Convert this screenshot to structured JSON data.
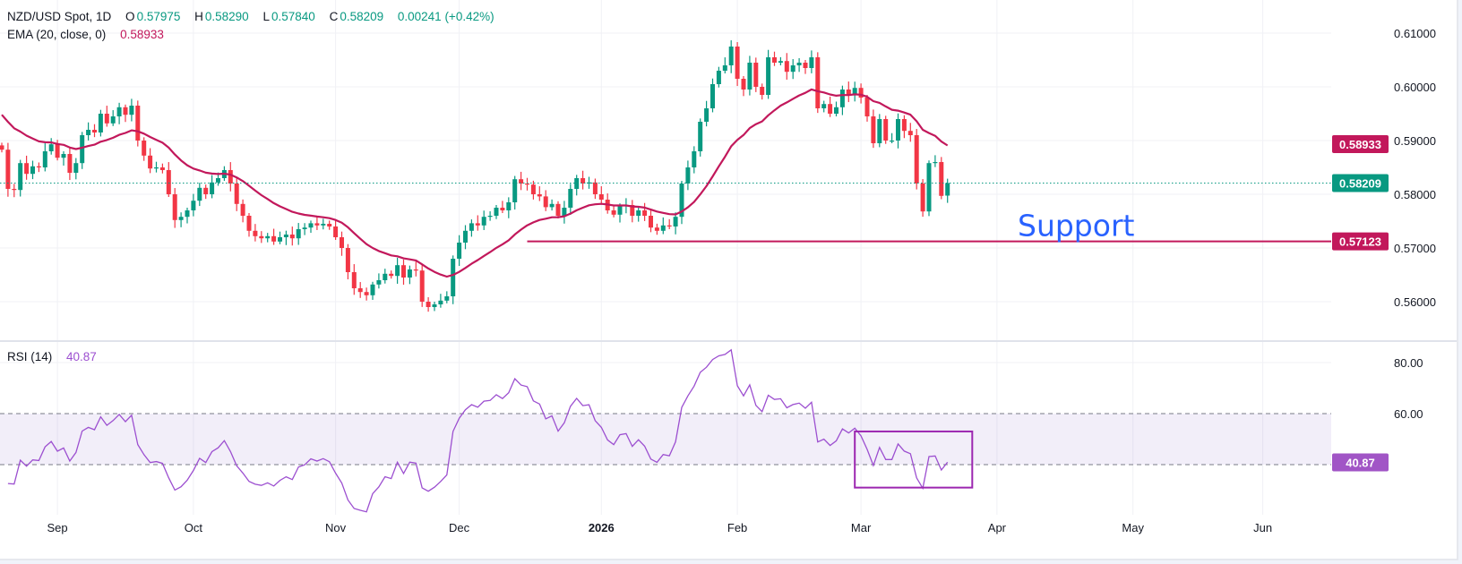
{
  "header": {
    "symbol": "NZD/USD Spot, 1D",
    "o_label": "O",
    "o": "0.57975",
    "h_label": "H",
    "h": "0.58290",
    "l_label": "L",
    "l": "0.57840",
    "c_label": "C",
    "c": "0.58209",
    "change": "0.00241 (+0.42%)"
  },
  "ema_legend": {
    "label": "EMA (20, close, 0)",
    "value": "0.58933"
  },
  "rsi_legend": {
    "label": "RSI (14)",
    "value": "40.87"
  },
  "colors": {
    "up": "#089981",
    "down": "#f23645",
    "ema": "#c2185b",
    "rsi": "#9c4fd0",
    "rsi_label": "#a155c6",
    "support": "#c2185b",
    "support_text": "#2962ff",
    "grid": "#f0f1f5"
  },
  "chart_data": {
    "type": "candlestick",
    "title": "NZD/USD Spot, 1D",
    "start_date": "2025-08-19",
    "close": [
      0.5883,
      0.581,
      0.5808,
      0.5858,
      0.5838,
      0.5852,
      0.585,
      0.588,
      0.5893,
      0.5868,
      0.5875,
      0.584,
      0.5858,
      0.591,
      0.592,
      0.5915,
      0.595,
      0.5932,
      0.5945,
      0.5962,
      0.5948,
      0.5965,
      0.59,
      0.5872,
      0.5848,
      0.585,
      0.5845,
      0.58,
      0.5752,
      0.5758,
      0.577,
      0.5788,
      0.5812,
      0.58,
      0.5822,
      0.583,
      0.5845,
      0.582,
      0.5782,
      0.576,
      0.5732,
      0.5722,
      0.5718,
      0.5722,
      0.5712,
      0.572,
      0.5725,
      0.5718,
      0.5735,
      0.5738,
      0.5746,
      0.5742,
      0.5745,
      0.574,
      0.572,
      0.57,
      0.5655,
      0.5625,
      0.5618,
      0.5612,
      0.5632,
      0.564,
      0.5652,
      0.5648,
      0.5668,
      0.5645,
      0.566,
      0.5658,
      0.56,
      0.559,
      0.5595,
      0.5602,
      0.561,
      0.568,
      0.571,
      0.5732,
      0.5746,
      0.5742,
      0.5758,
      0.576,
      0.5775,
      0.577,
      0.5785,
      0.5828,
      0.582,
      0.5818,
      0.58,
      0.5796,
      0.5776,
      0.5782,
      0.576,
      0.5775,
      0.581,
      0.583,
      0.582,
      0.5822,
      0.58,
      0.579,
      0.577,
      0.5762,
      0.5778,
      0.578,
      0.576,
      0.577,
      0.576,
      0.5738,
      0.5732,
      0.5742,
      0.574,
      0.5758,
      0.582,
      0.585,
      0.588,
      0.5935,
      0.596,
      0.6005,
      0.603,
      0.604,
      0.6075,
      0.6015,
      0.5995,
      0.6045,
      0.6,
      0.5985,
      0.6055,
      0.6045,
      0.6048,
      0.6028,
      0.604,
      0.6045,
      0.6035,
      0.6055,
      0.596,
      0.5968,
      0.595,
      0.5962,
      0.5995,
      0.5985,
      0.5998,
      0.598,
      0.5945,
      0.5895,
      0.594,
      0.59,
      0.59,
      0.594,
      0.5918,
      0.591,
      0.582,
      0.5768,
      0.5858,
      0.586,
      0.5797,
      0.58209
    ],
    "last_bar": {
      "open": 0.57975,
      "high": 0.5829,
      "low": 0.5784,
      "close": 0.58209
    },
    "ema": {
      "period": 20,
      "value": 0.58933,
      "seed": 0.5948
    },
    "rsi": {
      "period": 14,
      "value": 40.87,
      "upper": 60,
      "lower": 40,
      "ylim": [
        20,
        80
      ],
      "ticks": [
        "80.00",
        "60.00"
      ]
    },
    "price_ylim": [
      0.554,
      0.6156
    ],
    "price_ticks": [
      "0.61000",
      "0.60000",
      "0.59000",
      "0.58000",
      "0.57000",
      "0.56000"
    ],
    "current_price": {
      "value": 0.58209,
      "label": "0.58209"
    },
    "ema_price_label": "0.58933",
    "rsi_price_label": "40.87",
    "support": {
      "value": 0.57123,
      "label": "0.57123",
      "text": "Support",
      "from_date": "2025-12-16"
    },
    "rsi_box": {
      "from_date": "2026-02-27",
      "to_date": "2026-03-26",
      "top": 53,
      "bottom": 31
    },
    "x_ticks": [
      {
        "label": "Sep",
        "date": "2025-09-01",
        "bold": false
      },
      {
        "label": "Oct",
        "date": "2025-10-01",
        "bold": false
      },
      {
        "label": "Nov",
        "date": "2025-11-03",
        "bold": false
      },
      {
        "label": "Dec",
        "date": "2025-12-01",
        "bold": false
      },
      {
        "label": "2026",
        "date": "2026-01-01",
        "bold": true
      },
      {
        "label": "Feb",
        "date": "2026-02-02",
        "bold": false
      },
      {
        "label": "Mar",
        "date": "2026-03-02",
        "bold": false
      },
      {
        "label": "Apr",
        "date": "2026-04-01",
        "bold": false
      },
      {
        "label": "May",
        "date": "2026-05-01",
        "bold": false
      },
      {
        "label": "Jun",
        "date": "2026-06-01",
        "bold": false
      }
    ]
  }
}
